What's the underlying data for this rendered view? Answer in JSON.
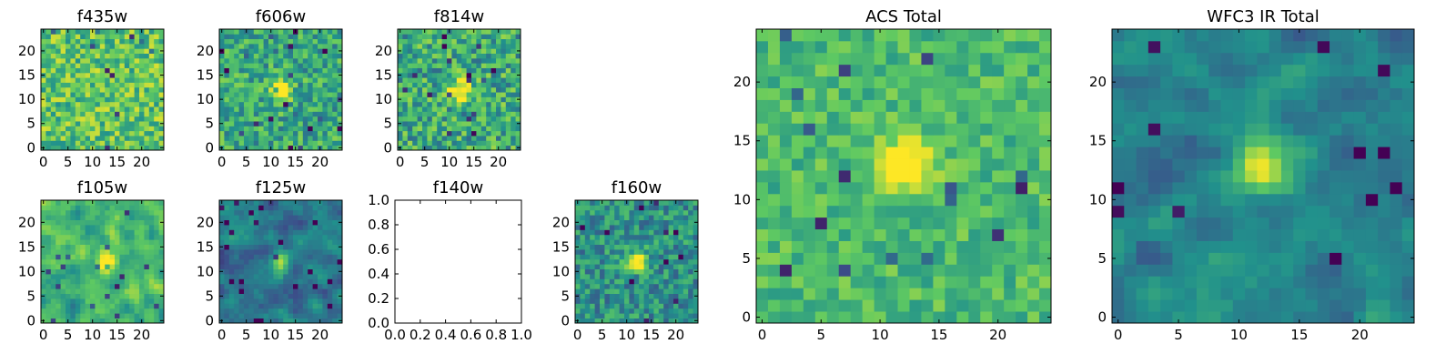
{
  "figure": {
    "colormap": "viridis",
    "colormap_stops": [
      "#440154",
      "#3b528b",
      "#21918c",
      "#5ec962",
      "#fde725"
    ]
  },
  "chart_data": [
    {
      "type": "heatmap",
      "title": "f435w",
      "xlim": [
        -0.5,
        24.5
      ],
      "ylim": [
        -0.5,
        24.5
      ],
      "xticks": [
        0,
        5,
        10,
        15,
        20
      ],
      "yticks": [
        0,
        5,
        10,
        15,
        20
      ],
      "xtick_labels": [
        "0",
        "5",
        "10",
        "15",
        "20"
      ],
      "ytick_labels": [
        "0",
        "5",
        "10",
        "15",
        "20"
      ],
      "grid_size": [
        25,
        25
      ],
      "pattern": "noise",
      "background_level": 0.72,
      "noise_level": 0.22,
      "source_peak": null
    },
    {
      "type": "heatmap",
      "title": "f606w",
      "xlim": [
        -0.5,
        24.5
      ],
      "ylim": [
        -0.5,
        24.5
      ],
      "xticks": [
        0,
        5,
        10,
        15,
        20
      ],
      "yticks": [
        0,
        5,
        10,
        15,
        20
      ],
      "xtick_labels": [
        "0",
        "5",
        "10",
        "15",
        "20"
      ],
      "ytick_labels": [
        "0",
        "5",
        "10",
        "15",
        "20"
      ],
      "grid_size": [
        25,
        25
      ],
      "pattern": "noise-with-source",
      "background_level": 0.6,
      "noise_level": 0.22,
      "source_peak": [
        12,
        12
      ]
    },
    {
      "type": "heatmap",
      "title": "f814w",
      "xlim": [
        -0.5,
        24.5
      ],
      "ylim": [
        -0.5,
        24.5
      ],
      "xticks": [
        0,
        5,
        10,
        15,
        20
      ],
      "yticks": [
        0,
        5,
        10,
        15,
        20
      ],
      "xtick_labels": [
        "0",
        "5",
        "10",
        "15",
        "20"
      ],
      "ytick_labels": [
        "0",
        "5",
        "10",
        "15",
        "20"
      ],
      "grid_size": [
        25,
        25
      ],
      "pattern": "noise-with-source",
      "background_level": 0.6,
      "noise_level": 0.25,
      "source_peak": [
        12,
        12
      ]
    },
    {
      "type": "heatmap",
      "title": "f105w",
      "xlim": [
        -0.5,
        24.5
      ],
      "ylim": [
        -0.5,
        24.5
      ],
      "xticks": [
        0,
        5,
        10,
        15,
        20
      ],
      "yticks": [
        0,
        5,
        10,
        15,
        20
      ],
      "xtick_labels": [
        "0",
        "5",
        "10",
        "15",
        "20"
      ],
      "ytick_labels": [
        "0",
        "5",
        "10",
        "15",
        "20"
      ],
      "grid_size": [
        25,
        25
      ],
      "pattern": "smooth-with-source",
      "background_level": 0.65,
      "noise_level": 0.15,
      "source_peak": [
        13,
        12
      ]
    },
    {
      "type": "heatmap",
      "title": "f125w",
      "xlim": [
        -0.5,
        24.5
      ],
      "ylim": [
        -0.5,
        24.5
      ],
      "xticks": [
        0,
        5,
        10,
        15,
        20
      ],
      "yticks": [
        0,
        5,
        10,
        15,
        20
      ],
      "xtick_labels": [
        "0",
        "5",
        "10",
        "15",
        "20"
      ],
      "ytick_labels": [
        "0",
        "5",
        "10",
        "15",
        "20"
      ],
      "grid_size": [
        25,
        25
      ],
      "pattern": "smooth-with-source",
      "background_level": 0.4,
      "noise_level": 0.13,
      "source_peak": [
        12,
        12
      ]
    },
    {
      "type": "empty",
      "title": "f140w",
      "xlim": [
        0,
        1
      ],
      "ylim": [
        0,
        1
      ],
      "xticks": [
        0,
        0.2,
        0.4,
        0.6,
        0.8,
        1.0
      ],
      "yticks": [
        0,
        0.2,
        0.4,
        0.6,
        0.8,
        1.0
      ],
      "xtick_labels": [
        "0.0",
        "0.2",
        "0.4",
        "0.6",
        "0.8",
        "1.0"
      ],
      "ytick_labels": [
        "0.0",
        "0.2",
        "0.4",
        "0.6",
        "0.8",
        "1.0"
      ]
    },
    {
      "type": "heatmap",
      "title": "f160w",
      "xlim": [
        -0.5,
        24.5
      ],
      "ylim": [
        -0.5,
        24.5
      ],
      "xticks": [
        0,
        5,
        10,
        15,
        20
      ],
      "yticks": [
        0,
        5,
        10,
        15,
        20
      ],
      "xtick_labels": [
        "0",
        "5",
        "10",
        "15",
        "20"
      ],
      "ytick_labels": [
        "0",
        "5",
        "10",
        "15",
        "20"
      ],
      "grid_size": [
        25,
        25
      ],
      "pattern": "noise-with-source",
      "background_level": 0.5,
      "noise_level": 0.2,
      "source_peak": [
        12,
        12
      ]
    },
    {
      "type": "heatmap",
      "title": "ACS Total",
      "xlim": [
        -0.5,
        24.5
      ],
      "ylim": [
        -0.5,
        24.5
      ],
      "xticks": [
        0,
        5,
        10,
        15,
        20
      ],
      "yticks": [
        0,
        5,
        10,
        15,
        20
      ],
      "xtick_labels": [
        "0",
        "5",
        "10",
        "15",
        "20"
      ],
      "ytick_labels": [
        "0",
        "5",
        "10",
        "15",
        "20"
      ],
      "grid_size": [
        25,
        25
      ],
      "pattern": "noise-with-source",
      "background_level": 0.68,
      "noise_level": 0.14,
      "source_peak": [
        12,
        13
      ]
    },
    {
      "type": "heatmap",
      "title": "WFC3 IR Total",
      "xlim": [
        -0.5,
        24.5
      ],
      "ylim": [
        -0.5,
        24.5
      ],
      "xticks": [
        0,
        5,
        10,
        15,
        20
      ],
      "yticks": [
        0,
        5,
        10,
        15,
        20
      ],
      "xtick_labels": [
        "0",
        "5",
        "10",
        "15",
        "20"
      ],
      "ytick_labels": [
        "0",
        "5",
        "10",
        "15",
        "20"
      ],
      "grid_size": [
        25,
        25
      ],
      "pattern": "smooth-with-source",
      "background_level": 0.45,
      "noise_level": 0.11,
      "source_peak": [
        12,
        13
      ]
    }
  ]
}
